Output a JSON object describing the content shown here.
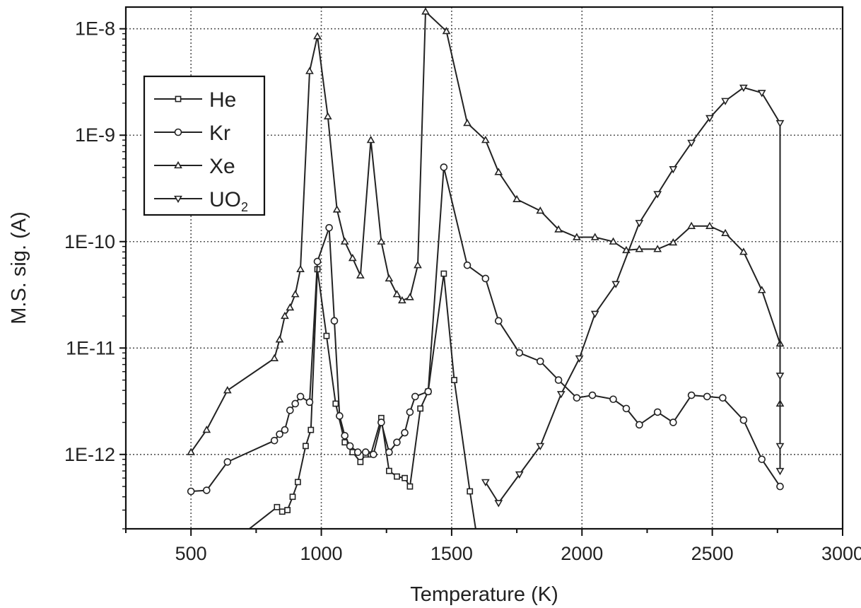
{
  "chart_data": {
    "type": "line",
    "title": "",
    "xlabel": "Temperature (K)",
    "ylabel": "M.S. sig. (A)",
    "xlim": [
      250,
      3000
    ],
    "ylim": [
      2e-13,
      1.6e-08
    ],
    "yscale": "log",
    "grid": true,
    "legend_position": "top-left",
    "xticks": [
      500,
      1000,
      1500,
      2000,
      2500,
      3000
    ],
    "xtick_labels": [
      "500",
      "1000",
      "1500",
      "2000",
      "2500",
      "3000"
    ],
    "yticks": [
      1e-12,
      1e-11,
      1e-10,
      1e-09,
      1e-08
    ],
    "ytick_labels": [
      "1E-12",
      "1E-11",
      "1E-10",
      "1E-9",
      "1E-8"
    ],
    "series": [
      {
        "name": "He",
        "marker": "square",
        "points": [
          [
            700,
            1.8e-13
          ],
          [
            830,
            3.2e-13
          ],
          [
            850,
            2.9e-13
          ],
          [
            870,
            3e-13
          ],
          [
            890,
            4e-13
          ],
          [
            910,
            5.5e-13
          ],
          [
            940,
            1.2e-12
          ],
          [
            960,
            1.7e-12
          ],
          [
            985,
            5.5e-11
          ],
          [
            1020,
            1.3e-11
          ],
          [
            1055,
            3e-12
          ],
          [
            1090,
            1.3e-12
          ],
          [
            1120,
            1.05e-12
          ],
          [
            1150,
            8.5e-13
          ],
          [
            1170,
            1e-12
          ],
          [
            1190,
            1e-12
          ],
          [
            1230,
            2.2e-12
          ],
          [
            1260,
            7e-13
          ],
          [
            1290,
            6.2e-13
          ],
          [
            1320,
            6e-13
          ],
          [
            1340,
            5e-13
          ],
          [
            1380,
            2.7e-12
          ],
          [
            1410,
            3.9e-12
          ],
          [
            1470,
            5e-11
          ],
          [
            1510,
            5e-12
          ],
          [
            1570,
            4.5e-13
          ],
          [
            1600,
            1.5e-13
          ]
        ]
      },
      {
        "name": "Kr",
        "marker": "circle",
        "points": [
          [
            500,
            4.5e-13
          ],
          [
            560,
            4.6e-13
          ],
          [
            640,
            8.5e-13
          ],
          [
            820,
            1.35e-12
          ],
          [
            840,
            1.55e-12
          ],
          [
            860,
            1.7e-12
          ],
          [
            880,
            2.6e-12
          ],
          [
            900,
            3e-12
          ],
          [
            920,
            3.5e-12
          ],
          [
            955,
            3.1e-12
          ],
          [
            985,
            6.5e-11
          ],
          [
            1030,
            1.35e-10
          ],
          [
            1050,
            1.8e-11
          ],
          [
            1070,
            2.3e-12
          ],
          [
            1090,
            1.5e-12
          ],
          [
            1110,
            1.2e-12
          ],
          [
            1140,
            1.05e-12
          ],
          [
            1170,
            1.05e-12
          ],
          [
            1200,
            1e-12
          ],
          [
            1230,
            2e-12
          ],
          [
            1260,
            1.05e-12
          ],
          [
            1290,
            1.3e-12
          ],
          [
            1320,
            1.6e-12
          ],
          [
            1340,
            2.5e-12
          ],
          [
            1360,
            3.5e-12
          ],
          [
            1410,
            3.9e-12
          ],
          [
            1470,
            5e-10
          ],
          [
            1560,
            6e-11
          ],
          [
            1630,
            4.5e-11
          ],
          [
            1680,
            1.8e-11
          ],
          [
            1760,
            9e-12
          ],
          [
            1840,
            7.5e-12
          ],
          [
            1910,
            5e-12
          ],
          [
            1980,
            3.4e-12
          ],
          [
            2040,
            3.6e-12
          ],
          [
            2120,
            3.3e-12
          ],
          [
            2170,
            2.7e-12
          ],
          [
            2220,
            1.9e-12
          ],
          [
            2290,
            2.5e-12
          ],
          [
            2350,
            2e-12
          ],
          [
            2420,
            3.6e-12
          ],
          [
            2480,
            3.5e-12
          ],
          [
            2540,
            3.4e-12
          ],
          [
            2620,
            2.1e-12
          ],
          [
            2690,
            9e-13
          ],
          [
            2760,
            5e-13
          ]
        ]
      },
      {
        "name": "Xe",
        "marker": "triangle-up",
        "points": [
          [
            500,
            1.05e-12
          ],
          [
            560,
            1.7e-12
          ],
          [
            640,
            4e-12
          ],
          [
            820,
            8e-12
          ],
          [
            840,
            1.2e-11
          ],
          [
            860,
            2e-11
          ],
          [
            880,
            2.4e-11
          ],
          [
            900,
            3.2e-11
          ],
          [
            920,
            5.5e-11
          ],
          [
            955,
            4e-09
          ],
          [
            985,
            8.5e-09
          ],
          [
            1025,
            1.5e-09
          ],
          [
            1060,
            2e-10
          ],
          [
            1090,
            1e-10
          ],
          [
            1120,
            7e-11
          ],
          [
            1150,
            4.8e-11
          ],
          [
            1190,
            9e-10
          ],
          [
            1230,
            1e-10
          ],
          [
            1260,
            4.5e-11
          ],
          [
            1290,
            3.2e-11
          ],
          [
            1310,
            2.8e-11
          ],
          [
            1340,
            3e-11
          ],
          [
            1370,
            6e-11
          ],
          [
            1400,
            1.45e-08
          ],
          [
            1480,
            9.5e-09
          ],
          [
            1560,
            1.3e-09
          ],
          [
            1630,
            9e-10
          ],
          [
            1680,
            4.5e-10
          ],
          [
            1750,
            2.5e-10
          ],
          [
            1840,
            1.95e-10
          ],
          [
            1910,
            1.3e-10
          ],
          [
            1980,
            1.1e-10
          ],
          [
            2050,
            1.1e-10
          ],
          [
            2120,
            1e-10
          ],
          [
            2170,
            8.3e-11
          ],
          [
            2220,
            8.5e-11
          ],
          [
            2290,
            8.5e-11
          ],
          [
            2350,
            9.8e-11
          ],
          [
            2420,
            1.4e-10
          ],
          [
            2490,
            1.4e-10
          ],
          [
            2550,
            1.2e-10
          ],
          [
            2620,
            8e-11
          ],
          [
            2690,
            3.5e-11
          ],
          [
            2760,
            1.1e-11
          ],
          [
            2760,
            3e-12
          ]
        ]
      },
      {
        "name": "UO2",
        "marker": "triangle-down",
        "points": [
          [
            1630,
            5.5e-13
          ],
          [
            1680,
            3.5e-13
          ],
          [
            1760,
            6.5e-13
          ],
          [
            1840,
            1.2e-12
          ],
          [
            1920,
            3.7e-12
          ],
          [
            1990,
            8e-12
          ],
          [
            2050,
            2.1e-11
          ],
          [
            2130,
            4e-11
          ],
          [
            2220,
            1.5e-10
          ],
          [
            2290,
            2.8e-10
          ],
          [
            2350,
            4.8e-10
          ],
          [
            2420,
            8.5e-10
          ],
          [
            2490,
            1.45e-09
          ],
          [
            2550,
            2.1e-09
          ],
          [
            2620,
            2.8e-09
          ],
          [
            2690,
            2.5e-09
          ],
          [
            2760,
            1.3e-09
          ],
          [
            2760,
            5.5e-12
          ],
          [
            2760,
            1.2e-12
          ],
          [
            2760,
            7e-13
          ]
        ]
      }
    ]
  }
}
